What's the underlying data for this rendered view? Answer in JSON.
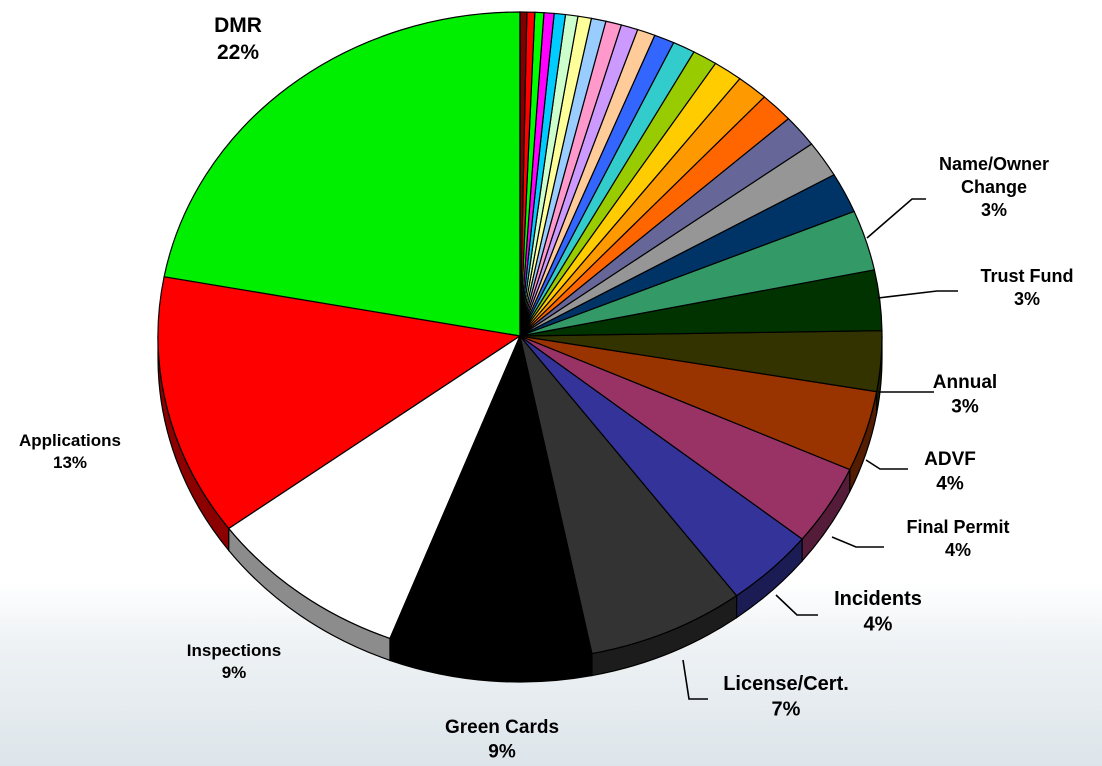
{
  "chart_data": {
    "type": "pie",
    "title": "",
    "style": "3d-tilted",
    "slices": [
      {
        "label": "DMR",
        "value": 22,
        "value_label": "22%",
        "color": "#00ee00"
      },
      {
        "label": "Applications",
        "value": 13,
        "value_label": "13%",
        "color": "#ff0000"
      },
      {
        "label": "Inspections",
        "value": 9,
        "value_label": "9%",
        "color": "#ffffff"
      },
      {
        "label": "Green Cards",
        "value": 9,
        "value_label": "9%",
        "color": "#000000"
      },
      {
        "label": "License/Cert.",
        "value": 7,
        "value_label": "7%",
        "color": "#333333"
      },
      {
        "label": "Incidents",
        "value": 4,
        "value_label": "4%",
        "color": "#333399"
      },
      {
        "label": "Final Permit",
        "value": 4,
        "value_label": "4%",
        "color": "#993366"
      },
      {
        "label": "ADVF",
        "value": 4,
        "value_label": "4%",
        "color": "#993300"
      },
      {
        "label": "Annual",
        "value": 3,
        "value_label": "3%",
        "color": "#333300"
      },
      {
        "label": "Trust Fund",
        "value": 3,
        "value_label": "3%",
        "color": "#003300"
      },
      {
        "label": "Name/Owner Change",
        "value": 3,
        "value_label": "3%",
        "color": "#339966"
      },
      {
        "label": "",
        "value": 2,
        "color": "#003366"
      },
      {
        "label": "",
        "value": 1.8,
        "color": "#969696"
      },
      {
        "label": "",
        "value": 1.6,
        "color": "#666699"
      },
      {
        "label": "",
        "value": 1.5,
        "color": "#ff6600"
      },
      {
        "label": "",
        "value": 1.4,
        "color": "#ff9900"
      },
      {
        "label": "",
        "value": 1.3,
        "color": "#ffcc00"
      },
      {
        "label": "",
        "value": 1.1,
        "color": "#99cc00"
      },
      {
        "label": "",
        "value": 1.0,
        "color": "#33cccc"
      },
      {
        "label": "",
        "value": 0.9,
        "color": "#3366ff"
      },
      {
        "label": "",
        "value": 0.8,
        "color": "#ffcc99"
      },
      {
        "label": "",
        "value": 0.75,
        "color": "#cc99ff"
      },
      {
        "label": "",
        "value": 0.7,
        "color": "#ff99cc"
      },
      {
        "label": "",
        "value": 0.65,
        "color": "#99ccff"
      },
      {
        "label": "",
        "value": 0.6,
        "color": "#ffff99"
      },
      {
        "label": "",
        "value": 0.55,
        "color": "#ccffcc"
      },
      {
        "label": "",
        "value": 0.5,
        "color": "#00ccff"
      },
      {
        "label": "",
        "value": 0.45,
        "color": "#ff00ff"
      },
      {
        "label": "",
        "value": 0.4,
        "color": "#00ff00"
      },
      {
        "label": "",
        "value": 0.35,
        "color": "#ff0000"
      },
      {
        "label": "",
        "value": 0.3,
        "color": "#800000"
      }
    ]
  }
}
